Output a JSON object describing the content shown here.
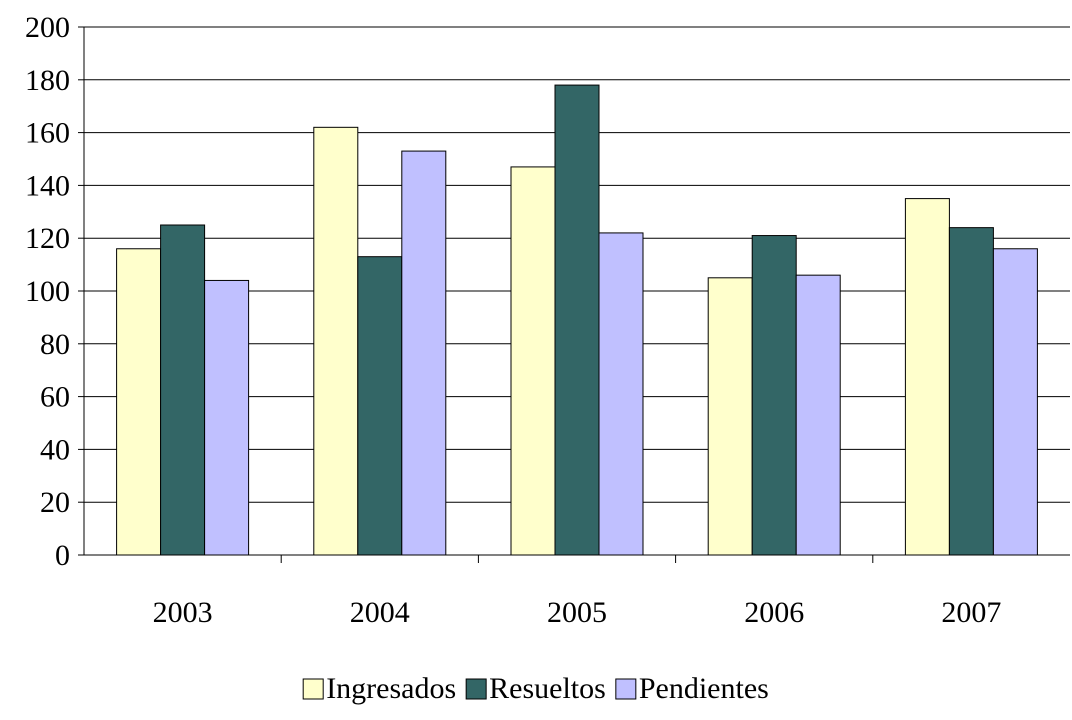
{
  "chart_data": {
    "type": "bar",
    "title": "",
    "xlabel": "",
    "ylabel": "",
    "categories": [
      "2003",
      "2004",
      "2005",
      "2006",
      "2007"
    ],
    "series": [
      {
        "name": "Ingresados",
        "color": "#FFFFCC",
        "values": [
          116,
          162,
          147,
          105,
          135
        ]
      },
      {
        "name": "Resueltos",
        "color": "#336666",
        "values": [
          125,
          113,
          178,
          121,
          124
        ]
      },
      {
        "name": "Pendientes",
        "color": "#C0C0FF",
        "values": [
          104,
          153,
          122,
          106,
          116
        ]
      }
    ],
    "ylim": [
      0,
      200
    ],
    "yticks": [
      "0",
      "20",
      "40",
      "60",
      "80",
      "100",
      "120",
      "140",
      "160",
      "180",
      "200"
    ],
    "grid": true,
    "legend_position": "bottom-center"
  }
}
